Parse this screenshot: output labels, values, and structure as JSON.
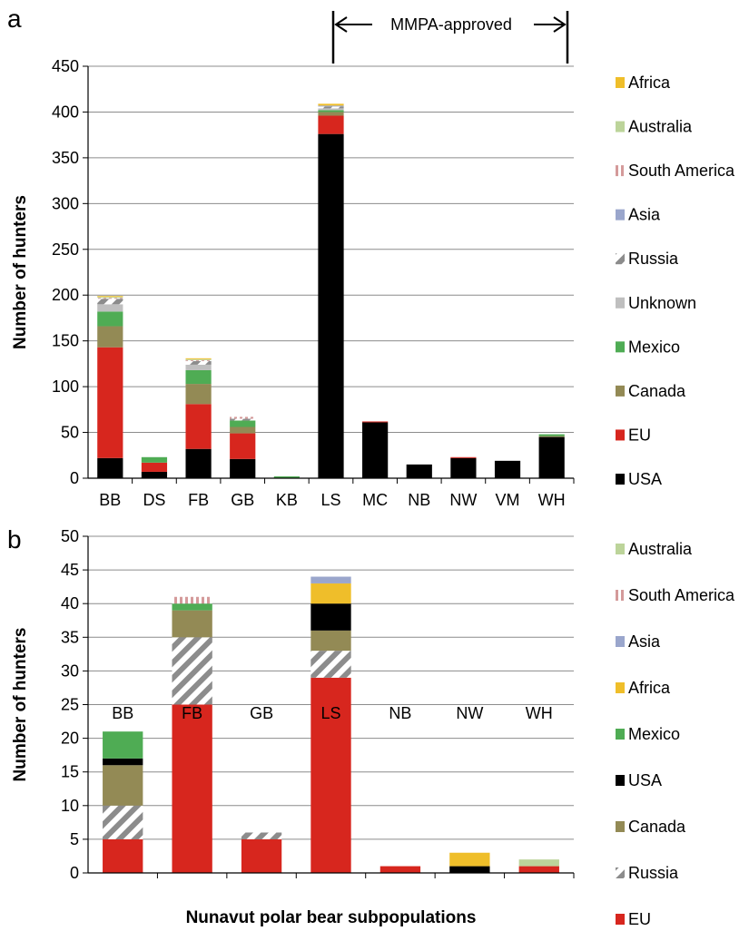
{
  "chart_data": [
    {
      "panel": "a",
      "type": "bar",
      "stacked": true,
      "title": "",
      "xlabel": "",
      "ylabel": "Number of hunters",
      "ylim": [
        0,
        450
      ],
      "yticks": [
        0,
        50,
        100,
        150,
        200,
        250,
        300,
        350,
        400,
        450
      ],
      "grid": true,
      "legend_position": "right",
      "annotation": "MMPA-approved",
      "annotation_span": [
        "LS",
        "WH"
      ],
      "categories": [
        "BB",
        "DS",
        "FB",
        "GB",
        "KB",
        "LS",
        "MC",
        "NB",
        "NW",
        "VM",
        "WH"
      ],
      "series": [
        {
          "name": "USA",
          "color": "#000000",
          "pattern": "solid",
          "values": [
            22,
            7,
            32,
            21,
            0,
            376,
            61,
            15,
            22,
            19,
            45
          ]
        },
        {
          "name": "EU",
          "color": "#d7261e",
          "pattern": "solid",
          "values": [
            121,
            10,
            49,
            28,
            0,
            20,
            1,
            0,
            1,
            0,
            0
          ]
        },
        {
          "name": "Canada",
          "color": "#938a55",
          "pattern": "solid",
          "values": [
            23,
            0,
            22,
            7,
            0,
            4,
            0,
            0,
            0,
            0,
            1
          ]
        },
        {
          "name": "Mexico",
          "color": "#4fac54",
          "pattern": "solid",
          "values": [
            16,
            6,
            15,
            7,
            2,
            2,
            0,
            0,
            0,
            0,
            2
          ]
        },
        {
          "name": "Unknown",
          "color": "#bfbfbf",
          "pattern": "solid",
          "values": [
            8,
            0,
            6,
            0,
            0,
            2,
            0,
            0,
            0,
            0,
            0
          ]
        },
        {
          "name": "Russia",
          "color": "#8c8c8c",
          "pattern": "hatch",
          "values": [
            6,
            0,
            4,
            2,
            0,
            2,
            0,
            0,
            0,
            0,
            0
          ]
        },
        {
          "name": "Asia",
          "color": "#9aa6cc",
          "pattern": "solid",
          "values": [
            0,
            0,
            0,
            0,
            0,
            1,
            0,
            0,
            0,
            0,
            0
          ]
        },
        {
          "name": "South America",
          "color": "#d49a9a",
          "pattern": "vstripe",
          "values": [
            1,
            0,
            1,
            2,
            0,
            0,
            0,
            0,
            0,
            0,
            0
          ]
        },
        {
          "name": "Australia",
          "color": "#bcd49a",
          "pattern": "solid",
          "values": [
            1,
            0,
            1,
            0,
            0,
            0,
            0,
            0,
            0,
            0,
            0
          ]
        },
        {
          "name": "Africa",
          "color": "#efbe2a",
          "pattern": "solid",
          "values": [
            1,
            0,
            1,
            0,
            0,
            2,
            0,
            0,
            0,
            0,
            0
          ]
        }
      ]
    },
    {
      "panel": "b",
      "type": "bar",
      "stacked": true,
      "title": "",
      "xlabel": "Nunavut polar bear subpopulations",
      "ylabel": "Number of hunters",
      "ylim": [
        0,
        50
      ],
      "yticks": [
        0,
        5,
        10,
        15,
        20,
        25,
        30,
        35,
        40,
        45,
        50
      ],
      "grid": true,
      "legend_position": "right",
      "categories": [
        "BB",
        "FB",
        "GB",
        "LS",
        "NB",
        "NW",
        "WH"
      ],
      "series": [
        {
          "name": "EU",
          "color": "#d7261e",
          "pattern": "solid",
          "values": [
            5,
            25,
            5,
            29,
            1,
            0,
            1
          ]
        },
        {
          "name": "Russia",
          "color": "#8c8c8c",
          "pattern": "hatch",
          "values": [
            5,
            10,
            1,
            4,
            0,
            0,
            0
          ]
        },
        {
          "name": "Canada",
          "color": "#938a55",
          "pattern": "solid",
          "values": [
            6,
            4,
            0,
            3,
            0,
            0,
            0
          ]
        },
        {
          "name": "USA",
          "color": "#000000",
          "pattern": "solid",
          "values": [
            1,
            0,
            0,
            4,
            0,
            1,
            0
          ]
        },
        {
          "name": "Mexico",
          "color": "#4fac54",
          "pattern": "solid",
          "values": [
            4,
            1,
            0,
            0,
            0,
            0,
            0
          ]
        },
        {
          "name": "Africa",
          "color": "#efbe2a",
          "pattern": "solid",
          "values": [
            0,
            0,
            0,
            3,
            0,
            2,
            0
          ]
        },
        {
          "name": "Asia",
          "color": "#9aa6cc",
          "pattern": "solid",
          "values": [
            0,
            0,
            0,
            1,
            0,
            0,
            0
          ]
        },
        {
          "name": "South America",
          "color": "#d49a9a",
          "pattern": "vstripe",
          "values": [
            0,
            1,
            0,
            0,
            0,
            0,
            0
          ]
        },
        {
          "name": "Australia",
          "color": "#bcd49a",
          "pattern": "solid",
          "values": [
            0,
            0,
            0,
            0,
            0,
            0,
            1
          ]
        }
      ]
    }
  ]
}
